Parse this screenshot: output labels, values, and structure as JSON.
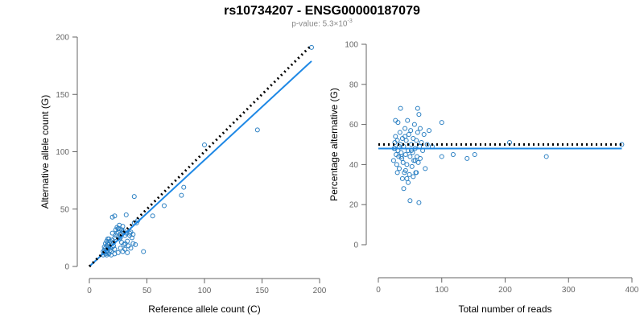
{
  "title": "rs10734207 - ENSG00000187079",
  "subtitle": {
    "prefix": "p-value: 5.3×10",
    "exponent": "-3"
  },
  "chart_data": [
    {
      "type": "scatter",
      "xlabel": "Reference allele count (C)",
      "ylabel": "Alternative allele count (G)",
      "xlim": [
        0,
        200
      ],
      "ylim": [
        0,
        200
      ],
      "xticks": [
        0,
        50,
        100,
        150,
        200
      ],
      "yticks": [
        0,
        50,
        100,
        150,
        200
      ],
      "grid": false,
      "point_color": "#2a7fc2",
      "fit_color": "#1e88e5",
      "reference_line": {
        "style": "dotted",
        "color": "#000000",
        "x": [
          0,
          192
        ],
        "y": [
          0,
          192
        ]
      },
      "fit_line": {
        "x": [
          0,
          193
        ],
        "y": [
          0,
          179
        ]
      },
      "points": [
        [
          12,
          10
        ],
        [
          13,
          12
        ],
        [
          14,
          11
        ],
        [
          15,
          13
        ],
        [
          16,
          12
        ],
        [
          17,
          11
        ],
        [
          18,
          14
        ],
        [
          13,
          14
        ],
        [
          12,
          13
        ],
        [
          14,
          16
        ],
        [
          15,
          18
        ],
        [
          16,
          15
        ],
        [
          17,
          19
        ],
        [
          18,
          16
        ],
        [
          19,
          13
        ],
        [
          20,
          17
        ],
        [
          21,
          18
        ],
        [
          22,
          15
        ],
        [
          14,
          20
        ],
        [
          15,
          22
        ],
        [
          16,
          24
        ],
        [
          18,
          22
        ],
        [
          19,
          20
        ],
        [
          20,
          23
        ],
        [
          21,
          21
        ],
        [
          22,
          25
        ],
        [
          23,
          27
        ],
        [
          24,
          29
        ],
        [
          25,
          30
        ],
        [
          26,
          24
        ],
        [
          27,
          28
        ],
        [
          28,
          32
        ],
        [
          29,
          35
        ],
        [
          30,
          31
        ],
        [
          31,
          27
        ],
        [
          32,
          29
        ],
        [
          25,
          33
        ],
        [
          26,
          36
        ],
        [
          27,
          25
        ],
        [
          28,
          21
        ],
        [
          30,
          19
        ],
        [
          31,
          15
        ],
        [
          33,
          12
        ],
        [
          36,
          16
        ],
        [
          37,
          25
        ],
        [
          34,
          18
        ],
        [
          38,
          20
        ],
        [
          40,
          19
        ],
        [
          33,
          22
        ],
        [
          35,
          27
        ],
        [
          36,
          30
        ],
        [
          32,
          45
        ],
        [
          22,
          44
        ],
        [
          20,
          43
        ],
        [
          39,
          61
        ],
        [
          42,
          40
        ],
        [
          47,
          13
        ],
        [
          55,
          44
        ],
        [
          65,
          53
        ],
        [
          80,
          62
        ],
        [
          82,
          69
        ],
        [
          100,
          106
        ],
        [
          146,
          119
        ],
        [
          193,
          191
        ],
        [
          24,
          34
        ],
        [
          29,
          30
        ],
        [
          35,
          29
        ],
        [
          17,
          24
        ],
        [
          20,
          29
        ],
        [
          13,
          17
        ],
        [
          16,
          20
        ],
        [
          23,
          32
        ],
        [
          26,
          33
        ],
        [
          38,
          28
        ],
        [
          27,
          16
        ],
        [
          15,
          10
        ],
        [
          19,
          10
        ],
        [
          22,
          11
        ],
        [
          25,
          12
        ],
        [
          29,
          13
        ],
        [
          31,
          20
        ],
        [
          39,
          38
        ],
        [
          41,
          38
        ]
      ]
    },
    {
      "type": "scatter",
      "xlabel": "Total number of reads",
      "ylabel": "Percentage alternative (G)",
      "xlim": [
        0,
        400
      ],
      "ylim": [
        0,
        100
      ],
      "xticks": [
        0,
        100,
        200,
        300,
        400
      ],
      "yticks": [
        0,
        20,
        40,
        60,
        80,
        100
      ],
      "grid": false,
      "point_color": "#2a7fc2",
      "fit_color": "#1e88e5",
      "reference_line": {
        "style": "dotted",
        "color": "#000000",
        "x": [
          0,
          384
        ],
        "y": [
          50,
          50
        ]
      },
      "fit_line": {
        "x": [
          0,
          384
        ],
        "y": [
          48,
          48
        ]
      },
      "points": [
        [
          24,
          42
        ],
        [
          25,
          48
        ],
        [
          26,
          51
        ],
        [
          27,
          54
        ],
        [
          28,
          45
        ],
        [
          29,
          40
        ],
        [
          30,
          52
        ],
        [
          31,
          47
        ],
        [
          32,
          44
        ],
        [
          33,
          38
        ],
        [
          34,
          56
        ],
        [
          35,
          50
        ],
        [
          36,
          46
        ],
        [
          37,
          43
        ],
        [
          38,
          53
        ],
        [
          39,
          41
        ],
        [
          40,
          49
        ],
        [
          41,
          36
        ],
        [
          42,
          58
        ],
        [
          43,
          45
        ],
        [
          44,
          52
        ],
        [
          45,
          40
        ],
        [
          46,
          62
        ],
        [
          47,
          47
        ],
        [
          48,
          55
        ],
        [
          49,
          35
        ],
        [
          50,
          44
        ],
        [
          51,
          57
        ],
        [
          52,
          50
        ],
        [
          53,
          39
        ],
        [
          54,
          46
        ],
        [
          55,
          53
        ],
        [
          56,
          42
        ],
        [
          57,
          60
        ],
        [
          58,
          48
        ],
        [
          59,
          36
        ],
        [
          60,
          52
        ],
        [
          61,
          44
        ],
        [
          62,
          56
        ],
        [
          63,
          41
        ],
        [
          64,
          65
        ],
        [
          65,
          49
        ],
        [
          66,
          43
        ],
        [
          68,
          51
        ],
        [
          70,
          47
        ],
        [
          72,
          55
        ],
        [
          74,
          38
        ],
        [
          27,
          62
        ],
        [
          31,
          61
        ],
        [
          35,
          68
        ],
        [
          40,
          28
        ],
        [
          45,
          33
        ],
        [
          50,
          22
        ],
        [
          55,
          34
        ],
        [
          60,
          36
        ],
        [
          64,
          21
        ],
        [
          62,
          68
        ],
        [
          77,
          50
        ],
        [
          80,
          57
        ],
        [
          85,
          49
        ],
        [
          100,
          61
        ],
        [
          100,
          44
        ],
        [
          118,
          45
        ],
        [
          140,
          43
        ],
        [
          152,
          45
        ],
        [
          207,
          51
        ],
        [
          265,
          44
        ],
        [
          384,
          50
        ],
        [
          30,
          36
        ],
        [
          38,
          33
        ],
        [
          43,
          37
        ],
        [
          58,
          42
        ],
        [
          66,
          58
        ],
        [
          26,
          48
        ],
        [
          33,
          49
        ],
        [
          42,
          54
        ],
        [
          36,
          44
        ],
        [
          47,
          31
        ],
        [
          52,
          47
        ]
      ]
    }
  ]
}
